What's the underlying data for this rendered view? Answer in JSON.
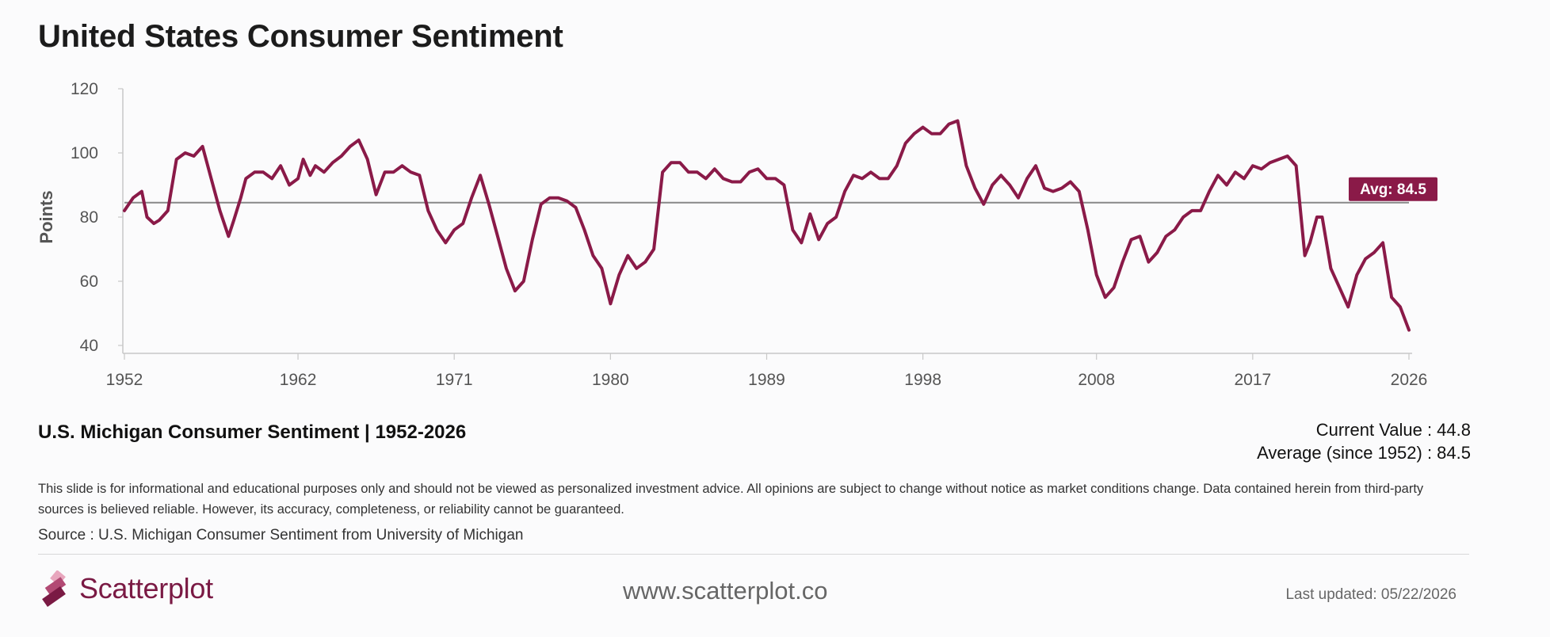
{
  "page": {
    "title": "United States Consumer Sentiment",
    "subtitle": "U.S. Michigan Consumer Sentiment | 1952-2026",
    "stats": {
      "current_label": "Current Value : 44.8",
      "average_label": "Average (since 1952) : 84.5"
    },
    "disclaimer": "This slide is for informational and educational purposes only and should not be viewed as personalized investment advice. All opinions are subject to change without notice as market conditions change. Data contained herein from third-party sources is believed reliable. However, its accuracy, completeness, or reliability cannot be guaranteed.",
    "source": "Source : U.S. Michigan Consumer Sentiment from University of Michigan",
    "footer": {
      "brand": "Scatterplot",
      "website": "www.scatterplot.co",
      "last_updated": "Last updated: 05/22/2026"
    }
  },
  "colors": {
    "series": "#8a1a48",
    "average_line": "#888888",
    "axis": "#c8c8c8",
    "badge": "#8a1a48"
  },
  "chart_data": {
    "type": "line",
    "title": "United States Consumer Sentiment",
    "ylabel": "Points",
    "xlabel": "",
    "ylim": [
      40,
      120
    ],
    "xlim": [
      1952,
      2026
    ],
    "yticks": [
      40,
      60,
      80,
      100,
      120
    ],
    "xticks": [
      1952,
      1962,
      1971,
      1980,
      1989,
      1998,
      2008,
      2017,
      2026
    ],
    "grid": false,
    "average": {
      "value": 84.5,
      "label": "Avg: 84.5"
    },
    "series": [
      {
        "x": [
          1952.0,
          1952.5,
          1953.0,
          1953.3,
          1953.7,
          1954.0,
          1954.5,
          1955.0,
          1955.5,
          1956.0,
          1956.5,
          1957.0,
          1957.5,
          1958.0,
          1958.3,
          1958.7,
          1959.0,
          1959.5,
          1960.0,
          1960.5,
          1961.0,
          1961.5,
          1962.0,
          1962.3,
          1962.7,
          1963.0,
          1963.5,
          1964.0,
          1964.5,
          1965.0,
          1965.5,
          1966.0,
          1966.5,
          1967.0,
          1967.5,
          1968.0,
          1968.5,
          1969.0,
          1969.5,
          1970.0,
          1970.5,
          1971.0,
          1971.5,
          1972.0,
          1972.5,
          1973.0,
          1973.5,
          1974.0,
          1974.5,
          1975.0,
          1975.5,
          1976.0,
          1976.5,
          1977.0,
          1977.5,
          1978.0,
          1978.5,
          1979.0,
          1979.5,
          1980.0,
          1980.5,
          1981.0,
          1981.5,
          1982.0,
          1982.5,
          1983.0,
          1983.5,
          1984.0,
          1984.5,
          1985.0,
          1985.5,
          1986.0,
          1986.5,
          1987.0,
          1987.5,
          1988.0,
          1988.5,
          1989.0,
          1989.5,
          1990.0,
          1990.5,
          1991.0,
          1991.5,
          1992.0,
          1992.5,
          1993.0,
          1993.5,
          1994.0,
          1994.5,
          1995.0,
          1995.5,
          1996.0,
          1996.5,
          1997.0,
          1997.5,
          1998.0,
          1998.5,
          1999.0,
          1999.5,
          2000.0,
          2000.5,
          2001.0,
          2001.5,
          2002.0,
          2002.5,
          2003.0,
          2003.5,
          2004.0,
          2004.5,
          2005.0,
          2005.5,
          2006.0,
          2006.5,
          2007.0,
          2007.5,
          2008.0,
          2008.5,
          2009.0,
          2009.5,
          2010.0,
          2010.5,
          2011.0,
          2011.5,
          2012.0,
          2012.5,
          2013.0,
          2013.5,
          2014.0,
          2014.5,
          2015.0,
          2015.5,
          2016.0,
          2016.5,
          2017.0,
          2017.5,
          2018.0,
          2018.5,
          2019.0,
          2019.5,
          2020.0,
          2020.3,
          2020.7,
          2021.0,
          2021.5,
          2022.0,
          2022.5,
          2023.0,
          2023.5,
          2024.0,
          2024.5,
          2025.0,
          2025.5,
          2026.0
        ],
        "y": [
          82,
          86,
          88,
          80,
          78,
          79,
          82,
          98,
          100,
          99,
          102,
          92,
          82,
          74,
          79,
          86,
          92,
          94,
          94,
          92,
          96,
          90,
          92,
          98,
          93,
          96,
          94,
          97,
          99,
          102,
          104,
          98,
          87,
          94,
          94,
          96,
          94,
          93,
          82,
          76,
          72,
          76,
          78,
          86,
          93,
          84,
          74,
          64,
          57,
          60,
          73,
          84,
          86,
          86,
          85,
          83,
          76,
          68,
          64,
          53,
          62,
          68,
          64,
          66,
          70,
          94,
          97,
          97,
          94,
          94,
          92,
          95,
          92,
          91,
          91,
          94,
          95,
          92,
          92,
          90,
          76,
          72,
          81,
          73,
          78,
          80,
          88,
          93,
          92,
          94,
          92,
          92,
          96,
          103,
          106,
          108,
          106,
          106,
          109,
          110,
          96,
          89,
          84,
          90,
          93,
          90,
          86,
          92,
          96,
          89,
          88,
          89,
          91,
          88,
          76,
          62,
          55,
          58,
          66,
          73,
          74,
          66,
          69,
          74,
          76,
          80,
          82,
          82,
          88,
          93,
          90,
          94,
          92,
          96,
          95,
          97,
          98,
          99,
          96,
          68,
          72,
          80,
          80,
          64,
          58,
          52,
          62,
          67,
          69,
          72,
          55,
          52,
          44.8
        ]
      }
    ]
  }
}
